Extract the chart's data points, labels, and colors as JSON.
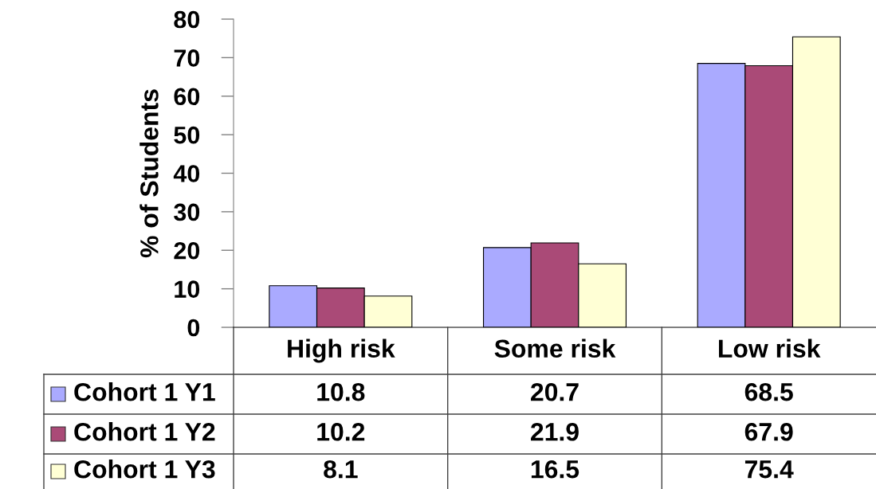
{
  "chart_data": {
    "type": "bar",
    "ylabel": "% of Students",
    "categories": [
      "High risk",
      "Some risk",
      "Low risk"
    ],
    "series": [
      {
        "name": "Cohort 1 Y1",
        "color": "#aaaaff",
        "values": [
          10.8,
          20.7,
          68.5
        ]
      },
      {
        "name": "Cohort 1 Y2",
        "color": "#aa4a77",
        "values": [
          10.2,
          21.9,
          67.9
        ]
      },
      {
        "name": "Cohort 1 Y3",
        "color": "#ffffd5",
        "values": [
          8.1,
          16.5,
          75.4
        ]
      }
    ],
    "ylim": [
      0,
      80
    ],
    "yticks": [
      0,
      10,
      20,
      30,
      40,
      50,
      60,
      70,
      80
    ],
    "grid": false,
    "legend": "bottom",
    "data_labels": true
  }
}
